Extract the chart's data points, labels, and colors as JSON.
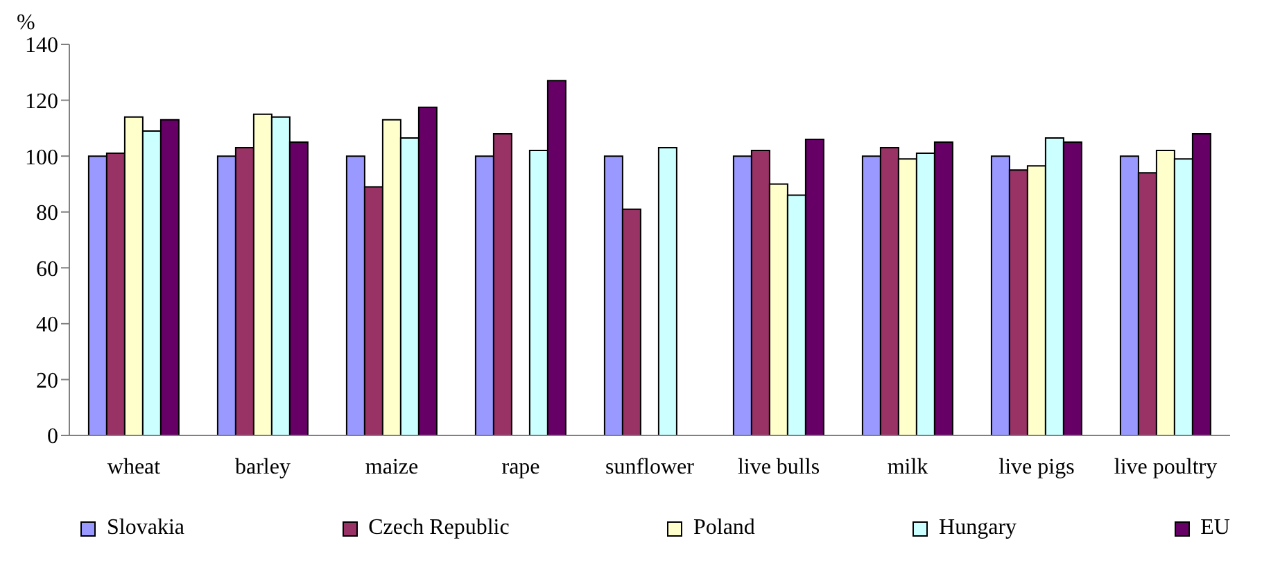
{
  "chart_data": {
    "type": "bar",
    "ylabel": "%",
    "categories": [
      "wheat",
      "barley",
      "maize",
      "rape",
      "sunflower",
      "live bulls",
      "milk",
      "live pigs",
      "live poultry"
    ],
    "series": [
      {
        "name": "Slovakia",
        "color": "#9999ff",
        "values": [
          100,
          100,
          100,
          100,
          100,
          100,
          100,
          100,
          100
        ]
      },
      {
        "name": "Czech Republic",
        "color": "#993366",
        "values": [
          101,
          103,
          89,
          108,
          81,
          102,
          103,
          95,
          94
        ]
      },
      {
        "name": "Poland",
        "color": "#ffffcc",
        "values": [
          114,
          115,
          113,
          null,
          null,
          90,
          99,
          96.5,
          102
        ]
      },
      {
        "name": "Hungary",
        "color": "#ccffff",
        "values": [
          109,
          114,
          106.5,
          102,
          103,
          86,
          101,
          106.5,
          99
        ]
      },
      {
        "name": "EU",
        "color": "#660066",
        "values": [
          113,
          105,
          117.5,
          127,
          null,
          106,
          105,
          105,
          108
        ]
      }
    ],
    "ylim": [
      0,
      140
    ],
    "yticks": [
      0,
      20,
      40,
      60,
      80,
      100,
      120,
      140
    ],
    "grid": false,
    "legend": "bottom"
  }
}
